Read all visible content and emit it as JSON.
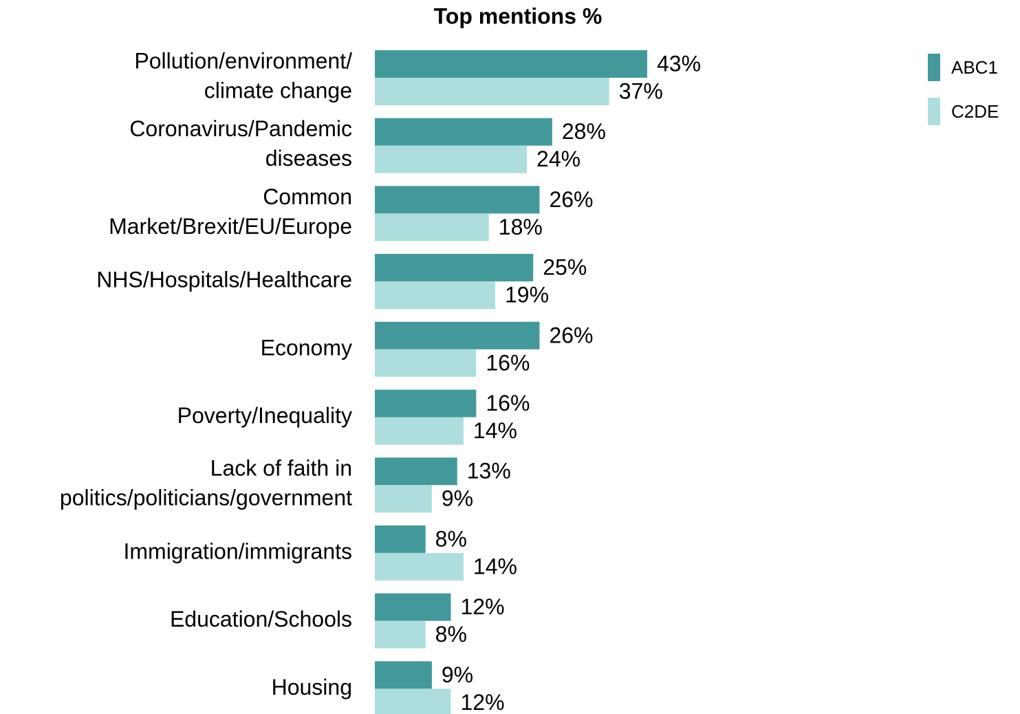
{
  "chart_data": {
    "type": "bar",
    "orientation": "horizontal",
    "title": "Top mentions %",
    "categories": [
      "Pollution/environment/\nclimate change",
      "Coronavirus/Pandemic\ndiseases",
      "Common\nMarket/Brexit/EU/Europe",
      "NHS/Hospitals/Healthcare",
      "Economy",
      "Poverty/Inequality",
      "Lack of faith in\npolitics/politicians/government",
      "Immigration/immigrants",
      "Education/Schools",
      "Housing"
    ],
    "series": [
      {
        "name": "ABC1",
        "color": "#43999a",
        "values": [
          43,
          28,
          26,
          25,
          26,
          16,
          13,
          8,
          12,
          9
        ],
        "value_labels": [
          "43%",
          "28%",
          "26%",
          "25%",
          "26%",
          "16%",
          "13%",
          "8%",
          "12%",
          "9%"
        ]
      },
      {
        "name": "C2DE",
        "color": "#addedd",
        "values": [
          37,
          24,
          18,
          19,
          16,
          14,
          9,
          14,
          8,
          12
        ],
        "value_labels": [
          "37%",
          "24%",
          "18%",
          "19%",
          "16%",
          "14%",
          "9%",
          "14%",
          "8%",
          "12%"
        ]
      }
    ],
    "legend": "top-right"
  }
}
